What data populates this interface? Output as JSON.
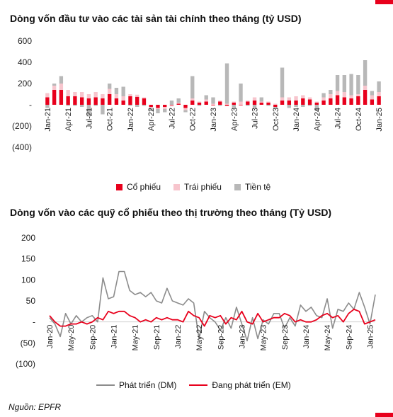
{
  "charts": [
    {
      "title": "Dòng vốn đầu tư vào các tài sản tài chính theo tháng (tỷ USD)",
      "legend": [
        "Cổ phiếu",
        "Trái phiếu",
        "Tiền tệ"
      ]
    },
    {
      "title": "Dòng vốn vào các quỹ cổ phiếu theo thị trường theo tháng (Tỷ USD)",
      "legend": [
        "Phát triển (DM)",
        "Đang phát triển (EM)"
      ]
    }
  ],
  "source": "Nguồn: EPFR",
  "colors": {
    "equity": "#e8001c",
    "bond": "#f7c5cd",
    "money": "#b8b8b8",
    "dm": "#8c8c8c",
    "em": "#e8001c",
    "accent": "#e8001c"
  },
  "chart_data": [
    {
      "type": "bar",
      "stacked": true,
      "title": "Dòng vốn đầu tư vào các tài sản tài chính theo tháng (tỷ USD)",
      "ylim": [
        -400,
        600
      ],
      "yticks": [
        600,
        400,
        200,
        0,
        -200,
        -400
      ],
      "ytick_labels": [
        "600",
        "400",
        "200",
        "-",
        "(200)",
        "(400)"
      ],
      "x_tick_labels": [
        "Jan-21",
        "Apr-21",
        "Jul-21",
        "Oct-21",
        "Jan-22",
        "Apr-22",
        "Jul-22",
        "Oct-22",
        "Jan-23",
        "Apr-23",
        "Jul-23",
        "Oct-23",
        "Jan-24",
        "Apr-24",
        "Jul-24",
        "Oct-24",
        "Jan-25"
      ],
      "categories": [
        "Jan-21",
        "Feb-21",
        "Mar-21",
        "Apr-21",
        "May-21",
        "Jun-21",
        "Jul-21",
        "Aug-21",
        "Sep-21",
        "Oct-21",
        "Nov-21",
        "Dec-21",
        "Jan-22",
        "Feb-22",
        "Mar-22",
        "Apr-22",
        "May-22",
        "Jun-22",
        "Jul-22",
        "Aug-22",
        "Sep-22",
        "Oct-22",
        "Nov-22",
        "Dec-22",
        "Jan-23",
        "Feb-23",
        "Mar-23",
        "Apr-23",
        "May-23",
        "Jun-23",
        "Jul-23",
        "Aug-23",
        "Sep-23",
        "Oct-23",
        "Nov-23",
        "Dec-23",
        "Jan-24",
        "Feb-24",
        "Mar-24",
        "Apr-24",
        "May-24",
        "Jun-24",
        "Jul-24",
        "Aug-24",
        "Sep-24",
        "Oct-24",
        "Nov-24",
        "Dec-24",
        "Jan-25"
      ],
      "legend_position": "bottom",
      "series": [
        {
          "name": "Cổ phiếu",
          "values": [
            70,
            140,
            140,
            80,
            80,
            70,
            60,
            70,
            60,
            100,
            60,
            40,
            80,
            75,
            60,
            -20,
            -30,
            -20,
            -5,
            10,
            -30,
            40,
            20,
            30,
            -5,
            30,
            -10,
            20,
            -5,
            30,
            40,
            20,
            20,
            -20,
            40,
            40,
            40,
            60,
            50,
            20,
            40,
            60,
            90,
            70,
            60,
            80,
            140,
            50,
            80
          ]
        },
        {
          "name": "Trái phiếu",
          "values": [
            40,
            40,
            60,
            60,
            40,
            50,
            40,
            50,
            40,
            50,
            40,
            40,
            20,
            20,
            10,
            -10,
            -10,
            -20,
            -10,
            10,
            -20,
            20,
            10,
            20,
            10,
            10,
            10,
            10,
            30,
            10,
            30,
            10,
            10,
            10,
            30,
            30,
            40,
            30,
            20,
            10,
            30,
            40,
            40,
            50,
            30,
            20,
            40,
            40,
            40
          ]
        },
        {
          "name": "Tiền tệ",
          "values": [
            -30,
            20,
            70,
            -10,
            -10,
            -20,
            -110,
            -10,
            -90,
            50,
            60,
            90,
            -10,
            -20,
            -10,
            -30,
            -40,
            -30,
            40,
            40,
            -20,
            210,
            -10,
            40,
            60,
            -10,
            380,
            -30,
            170,
            -10,
            -30,
            40,
            -10,
            -10,
            280,
            -30,
            -20,
            -20,
            -10,
            -60,
            40,
            40,
            150,
            160,
            200,
            180,
            240,
            40,
            100
          ]
        }
      ]
    },
    {
      "type": "line",
      "title": "Dòng vốn vào các quỹ cổ phiếu theo thị trường theo tháng (Tỷ USD)",
      "ylim": [
        -100,
        200
      ],
      "yticks": [
        200,
        150,
        100,
        50,
        0,
        -50,
        -100
      ],
      "ytick_labels": [
        "200",
        "150",
        "100",
        "50",
        "-",
        "(50)",
        "(100)"
      ],
      "x_tick_labels": [
        "Jan-20",
        "May-20",
        "Sep-20",
        "Jan-21",
        "May-21",
        "Sep-21",
        "Jan-22",
        "May-22",
        "Sep-22",
        "Jan-23",
        "May-23",
        "Sep-23",
        "Jan-24",
        "May-24",
        "Sep-24",
        "Jan-25"
      ],
      "x": [
        "Jan-20",
        "Feb-20",
        "Mar-20",
        "Apr-20",
        "May-20",
        "Jun-20",
        "Jul-20",
        "Aug-20",
        "Sep-20",
        "Oct-20",
        "Nov-20",
        "Dec-20",
        "Jan-21",
        "Feb-21",
        "Mar-21",
        "Apr-21",
        "May-21",
        "Jun-21",
        "Jul-21",
        "Aug-21",
        "Sep-21",
        "Oct-21",
        "Nov-21",
        "Dec-21",
        "Jan-22",
        "Feb-22",
        "Mar-22",
        "Apr-22",
        "May-22",
        "Jun-22",
        "Jul-22",
        "Aug-22",
        "Sep-22",
        "Oct-22",
        "Nov-22",
        "Dec-22",
        "Jan-23",
        "Feb-23",
        "Mar-23",
        "Apr-23",
        "May-23",
        "Jun-23",
        "Jul-23",
        "Aug-23",
        "Sep-23",
        "Oct-23",
        "Nov-23",
        "Dec-23",
        "Jan-24",
        "Feb-24",
        "Mar-24",
        "Apr-24",
        "May-24",
        "Jun-24",
        "Jul-24",
        "Aug-24",
        "Sep-24",
        "Oct-24",
        "Nov-24",
        "Dec-24",
        "Jan-25",
        "Feb-25"
      ],
      "legend_position": "bottom",
      "series": [
        {
          "name": "Phát triển (DM)",
          "values": [
            10,
            -5,
            -35,
            20,
            -5,
            15,
            0,
            10,
            15,
            0,
            105,
            55,
            60,
            120,
            120,
            75,
            65,
            70,
            60,
            70,
            50,
            45,
            80,
            50,
            45,
            40,
            55,
            45,
            -40,
            25,
            10,
            0,
            -20,
            10,
            -15,
            35,
            -5,
            -45,
            10,
            -40,
            5,
            -5,
            20,
            20,
            -15,
            10,
            -10,
            40,
            25,
            35,
            15,
            10,
            55,
            -15,
            30,
            25,
            45,
            30,
            70,
            35,
            -5,
            65
          ]
        },
        {
          "name": "Đang phát triển (EM)",
          "values": [
            15,
            0,
            -10,
            -10,
            -5,
            -5,
            0,
            -5,
            0,
            10,
            5,
            25,
            20,
            25,
            25,
            15,
            10,
            0,
            5,
            0,
            10,
            5,
            10,
            5,
            5,
            0,
            25,
            15,
            10,
            -10,
            15,
            10,
            15,
            -5,
            10,
            5,
            25,
            0,
            -5,
            20,
            0,
            5,
            10,
            10,
            20,
            15,
            0,
            5,
            0,
            0,
            5,
            15,
            20,
            10,
            15,
            0,
            20,
            30,
            25,
            -5,
            0,
            5
          ]
        }
      ]
    }
  ]
}
